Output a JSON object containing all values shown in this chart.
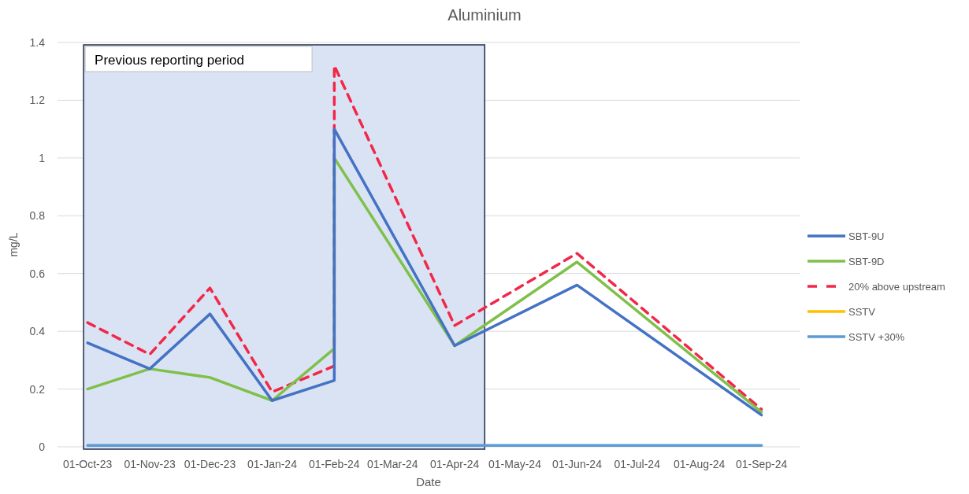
{
  "chart_data": {
    "type": "line",
    "title": "Aluminium",
    "xlabel": "Date",
    "ylabel": "mg/L",
    "x": [
      "2023-10-01",
      "2023-11-01",
      "2023-12-01",
      "2024-01-01",
      "2024-02-01",
      "2024-02-01",
      "2024-04-01",
      "2024-06-01",
      "2024-09-01"
    ],
    "series": [
      {
        "name": "SBT-9U",
        "color": "#4472c4",
        "values": [
          0.36,
          0.27,
          0.46,
          0.16,
          0.23,
          1.1,
          0.35,
          0.56,
          0.11
        ]
      },
      {
        "name": "SBT-9D",
        "color": "#7fc04a",
        "values": [
          0.2,
          0.27,
          0.24,
          0.16,
          0.34,
          1.0,
          0.35,
          0.64,
          0.12
        ]
      },
      {
        "name": "20% above upstream",
        "color": "#f2274a",
        "line_style": "dashed",
        "values": [
          0.43,
          0.32,
          0.55,
          0.19,
          0.28,
          1.32,
          0.42,
          0.67,
          0.13
        ]
      },
      {
        "name": "SSTV",
        "color": "#ffc000",
        "values": [
          null,
          null,
          null,
          null,
          null,
          null,
          null,
          null,
          null
        ]
      },
      {
        "name": "SSTV +30%",
        "color": "#5b9bd5",
        "values": [
          0.005,
          0.005,
          0.005,
          0.005,
          0.005,
          0.005,
          0.005,
          0.005,
          0.005
        ]
      }
    ],
    "xlim": [
      "2023-09-16",
      "2024-09-20"
    ],
    "xticks": [
      {
        "value": "2023-10-01",
        "label": "01-Oct-23"
      },
      {
        "value": "2023-11-01",
        "label": "01-Nov-23"
      },
      {
        "value": "2023-12-01",
        "label": "01-Dec-23"
      },
      {
        "value": "2024-01-01",
        "label": "01-Jan-24"
      },
      {
        "value": "2024-02-01",
        "label": "01-Feb-24"
      },
      {
        "value": "2024-03-01",
        "label": "01-Mar-24"
      },
      {
        "value": "2024-04-01",
        "label": "01-Apr-24"
      },
      {
        "value": "2024-05-01",
        "label": "01-May-24"
      },
      {
        "value": "2024-06-01",
        "label": "01-Jun-24"
      },
      {
        "value": "2024-07-01",
        "label": "01-Jul-24"
      },
      {
        "value": "2024-08-01",
        "label": "01-Aug-24"
      },
      {
        "value": "2024-09-01",
        "label": "01-Sep-24"
      }
    ],
    "ylim": [
      0,
      1.4
    ],
    "yticks": [
      0,
      0.2,
      0.4,
      0.6,
      0.8,
      1,
      1.2,
      1.4
    ],
    "bands": [
      {
        "axis": "x",
        "from": "2023-09-29",
        "to": "2024-04-16",
        "label": "Previous reporting period",
        "color": "#dae3f3"
      }
    ],
    "grid": "y",
    "legend": "right",
    "line_style": "solid",
    "marker": "none"
  }
}
